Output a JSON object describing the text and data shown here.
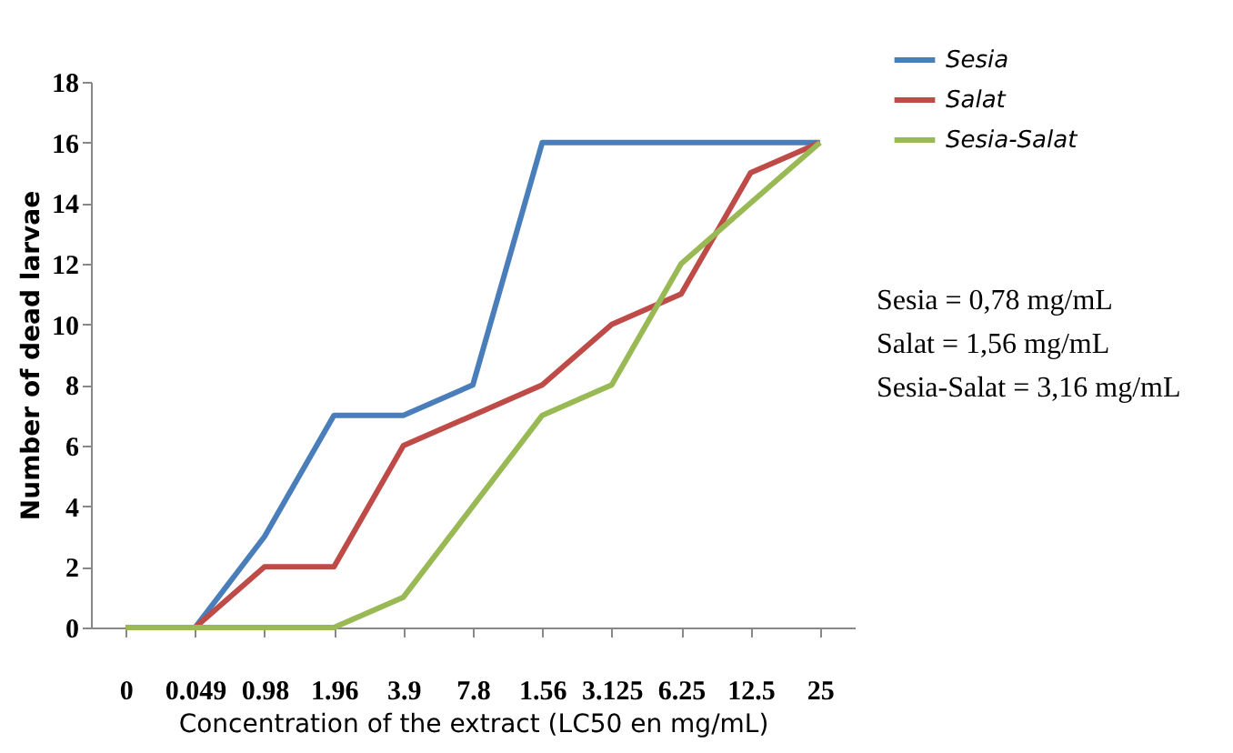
{
  "chart_data": {
    "type": "line",
    "xlabel": "Concentration of the extract (LC50  en mg/mL)",
    "ylabel": "Number of dead larvae",
    "categories": [
      "0",
      "0.049",
      "0.98",
      "1.96",
      "3.9",
      "7.8",
      "1.56",
      "3.125",
      "6.25",
      "12.5",
      "25"
    ],
    "series": [
      {
        "name": "Sesia",
        "color": "#4a7ebb",
        "values": [
          0,
          0,
          3,
          7,
          7,
          8,
          16,
          16,
          16,
          16,
          16
        ]
      },
      {
        "name": "Salat",
        "color": "#be4b48",
        "values": [
          0,
          0,
          2,
          2,
          6,
          7,
          8,
          10,
          11,
          15,
          16
        ]
      },
      {
        "name": "Sesia-Salat",
        "color": "#98b954",
        "values": [
          0,
          0,
          0,
          0,
          1,
          4,
          7,
          8,
          12,
          14,
          16
        ]
      }
    ],
    "ylim": [
      0,
      18
    ],
    "yticks": [
      0,
      2,
      4,
      6,
      8,
      10,
      12,
      14,
      16,
      18
    ],
    "annotations": [
      "Sesia = 0,78 mg/mL",
      "Salat = 1,56 mg/mL",
      "Sesia-Salat = 3,16 mg/mL"
    ],
    "legend": "top right",
    "grid": false,
    "marker": "none",
    "line_style": "solid"
  }
}
